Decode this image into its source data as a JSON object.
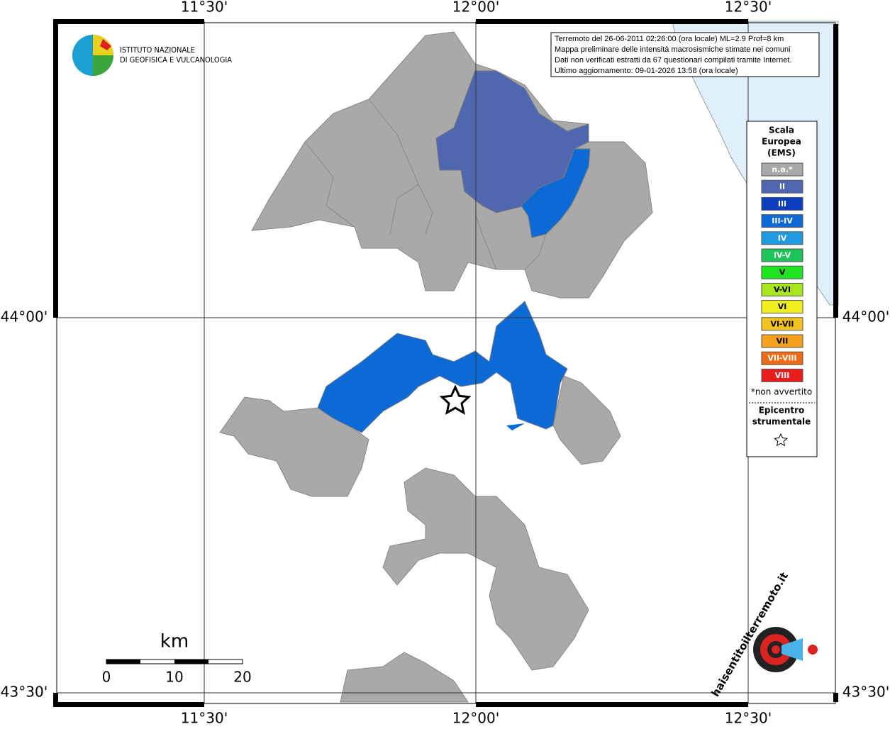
{
  "map": {
    "lon_labels": [
      "11°30'",
      "12°00'",
      "12°30'"
    ],
    "lat_labels": [
      "44°00'",
      "43°30'"
    ],
    "institute": [
      "ISTITUTO NAZIONALE",
      "DI GEOFISICA E VULCANOLOGIA"
    ],
    "info": [
      "Terremoto del 26-06-2011 02:26:00 (ora locale) ML=2.9 Prof=8 km",
      "Mappa preliminare delle intensità macrosismiche stimate nei comuni",
      "Dati non verificati estratti da 67 questionari compilati tramite Internet.",
      "Ultimo aggiornamento: 09-01-2026 13:58 (ora locale)"
    ],
    "legend": {
      "title": [
        "Scala",
        "Europea",
        "(EMS)"
      ],
      "entries": [
        {
          "label": "n.a.*",
          "color": "#a9a9a9"
        },
        {
          "label": "II",
          "color": "#4f67b0"
        },
        {
          "label": "III",
          "color": "#0b3dbf"
        },
        {
          "label": "III-IV",
          "color": "#0b6ad6"
        },
        {
          "label": "IV",
          "color": "#1e9be0"
        },
        {
          "label": "IV-V",
          "color": "#1ec45a"
        },
        {
          "label": "V",
          "color": "#1ee31e"
        },
        {
          "label": "V-VI",
          "color": "#a8e61e"
        },
        {
          "label": "VI",
          "color": "#f0f01e"
        },
        {
          "label": "VI-VII",
          "color": "#f2c21e"
        },
        {
          "label": "VII",
          "color": "#f5a01e"
        },
        {
          "label": "VII-VIII",
          "color": "#f06a14"
        },
        {
          "label": "VIII",
          "color": "#e81e1e"
        }
      ],
      "note": "*non avvertito",
      "epicenter": [
        "Epicentro",
        "strumentale"
      ]
    },
    "scale": {
      "unit": "km",
      "labels": [
        "0",
        "10",
        "20"
      ]
    },
    "logo": "haisentitoilterremoto.it"
  }
}
